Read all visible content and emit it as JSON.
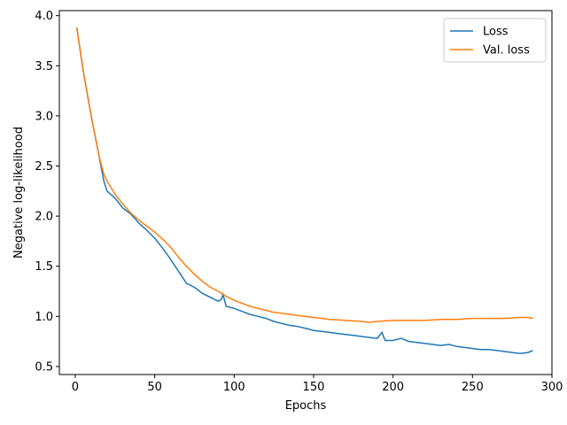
{
  "chart_data": {
    "type": "line",
    "title": "",
    "xlabel": "Epochs",
    "ylabel": "Negative log-likelihood",
    "xlim": [
      -10,
      300
    ],
    "ylim": [
      0.42,
      4.05
    ],
    "xticks": [
      0,
      50,
      100,
      150,
      200,
      250,
      300
    ],
    "yticks": [
      0.5,
      1.0,
      1.5,
      2.0,
      2.5,
      3.0,
      3.5,
      4.0
    ],
    "xtick_labels": [
      "0",
      "50",
      "100",
      "150",
      "200",
      "250",
      "300"
    ],
    "ytick_labels": [
      "0.5",
      "1.0",
      "1.5",
      "2.0",
      "2.5",
      "3.0",
      "3.5",
      "4.0"
    ],
    "grid": false,
    "legend_position": "top-right",
    "series": [
      {
        "name": "Loss",
        "color": "#1f77b4",
        "x": [
          1,
          5,
          10,
          15,
          18,
          20,
          25,
          30,
          35,
          40,
          45,
          50,
          55,
          60,
          65,
          70,
          75,
          80,
          85,
          90,
          92,
          93,
          95,
          100,
          105,
          110,
          115,
          120,
          125,
          130,
          135,
          140,
          145,
          150,
          155,
          160,
          165,
          170,
          175,
          180,
          185,
          190,
          193,
          195,
          200,
          205,
          210,
          215,
          220,
          225,
          230,
          235,
          240,
          245,
          250,
          255,
          260,
          265,
          270,
          275,
          280,
          285,
          288
        ],
        "y": [
          3.88,
          3.45,
          3.0,
          2.6,
          2.35,
          2.25,
          2.18,
          2.08,
          2.02,
          1.93,
          1.86,
          1.78,
          1.68,
          1.57,
          1.45,
          1.33,
          1.29,
          1.23,
          1.19,
          1.15,
          1.17,
          1.22,
          1.1,
          1.08,
          1.05,
          1.02,
          1.0,
          0.98,
          0.95,
          0.93,
          0.91,
          0.9,
          0.88,
          0.86,
          0.85,
          0.84,
          0.83,
          0.82,
          0.81,
          0.8,
          0.79,
          0.78,
          0.84,
          0.76,
          0.76,
          0.78,
          0.75,
          0.74,
          0.73,
          0.72,
          0.71,
          0.72,
          0.7,
          0.69,
          0.68,
          0.67,
          0.67,
          0.66,
          0.65,
          0.64,
          0.63,
          0.64,
          0.66
        ]
      },
      {
        "name": "Val. loss",
        "color": "#ff7f0e",
        "x": [
          1,
          5,
          10,
          15,
          18,
          20,
          25,
          30,
          35,
          40,
          45,
          50,
          55,
          60,
          65,
          70,
          75,
          80,
          85,
          90,
          95,
          100,
          105,
          110,
          115,
          120,
          125,
          130,
          140,
          150,
          160,
          170,
          180,
          185,
          190,
          200,
          210,
          220,
          230,
          240,
          250,
          260,
          270,
          280,
          285,
          288
        ],
        "y": [
          3.88,
          3.45,
          3.0,
          2.6,
          2.42,
          2.35,
          2.22,
          2.12,
          2.03,
          1.96,
          1.9,
          1.84,
          1.77,
          1.69,
          1.59,
          1.5,
          1.42,
          1.35,
          1.29,
          1.25,
          1.2,
          1.16,
          1.13,
          1.1,
          1.08,
          1.06,
          1.04,
          1.03,
          1.01,
          0.99,
          0.97,
          0.96,
          0.95,
          0.94,
          0.95,
          0.96,
          0.96,
          0.96,
          0.97,
          0.97,
          0.98,
          0.98,
          0.98,
          0.99,
          0.99,
          0.98
        ]
      }
    ]
  }
}
